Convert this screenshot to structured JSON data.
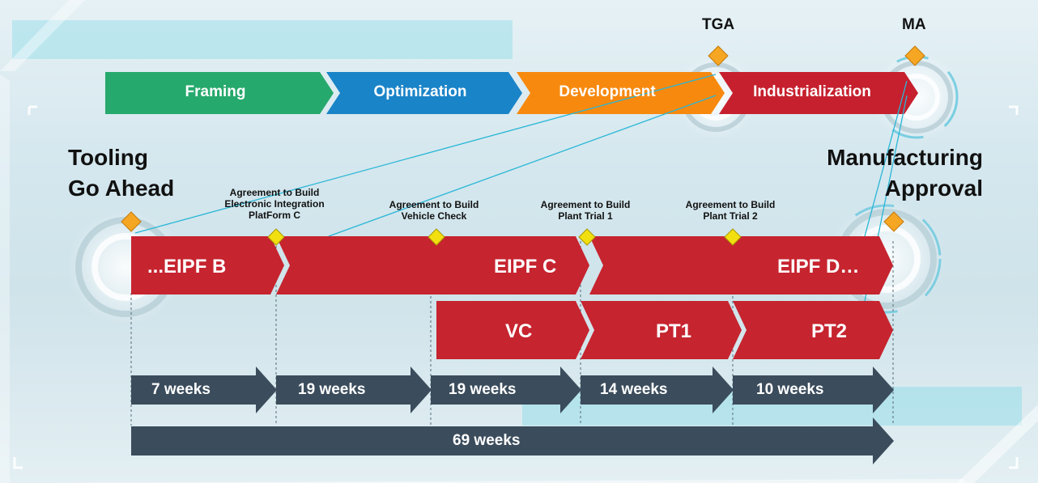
{
  "phases": [
    {
      "label": "Framing",
      "color": "#26a96c"
    },
    {
      "label": "Optimization",
      "color": "#1a84c8"
    },
    {
      "label": "Development",
      "color": "#f7890f"
    },
    {
      "label": "Industrialization",
      "color": "#c6202e"
    }
  ],
  "gates": [
    {
      "code": "TGA",
      "title": "Tooling\nGo Ahead"
    },
    {
      "code": "MA",
      "title": "Manufacturing\nApproval"
    }
  ],
  "agreements": [
    {
      "label": "Agreement to Build\nElectronic Integration\nPlatForm C"
    },
    {
      "label": "Agreement to Build\nVehicle Check"
    },
    {
      "label": "Agreement to Build\nPlant Trial 1"
    },
    {
      "label": "Agreement to Build\nPlant Trial 2"
    }
  ],
  "builds": [
    {
      "label": "...EIPF B"
    },
    {
      "label": "EIPF C"
    },
    {
      "label": "EIPF D…"
    },
    {
      "label": "VC"
    },
    {
      "label": "PT1"
    },
    {
      "label": "PT2"
    }
  ],
  "durations": [
    {
      "label": "7 weeks"
    },
    {
      "label": "19 weeks"
    },
    {
      "label": "19 weeks"
    },
    {
      "label": "14 weeks"
    },
    {
      "label": "10 weeks"
    }
  ],
  "total": {
    "label": "69 weeks"
  },
  "colors": {
    "build_red": "#c6242f",
    "duration_slate": "#3b4c5c",
    "diamond_orange": "#f5a623",
    "diamond_yellow": "#f2df10",
    "accent_cyan": "#29b6d6"
  }
}
